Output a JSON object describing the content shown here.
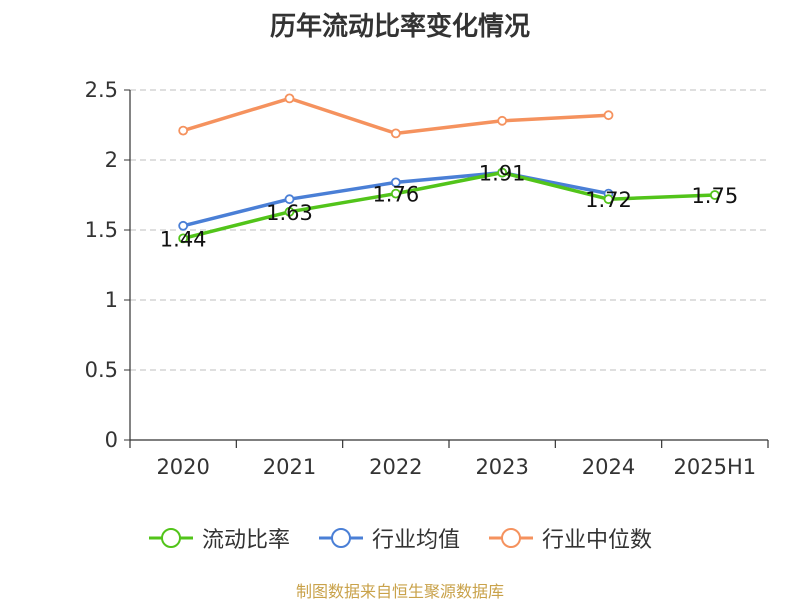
{
  "chart_data": {
    "type": "line",
    "title": "历年流动比率变化情况",
    "categories": [
      "2020",
      "2021",
      "2022",
      "2023",
      "2024",
      "2025H1"
    ],
    "ylim": [
      0,
      2.5
    ],
    "yticks": [
      "0",
      "0.5",
      "1",
      "1.5",
      "2",
      "2.5"
    ],
    "grid": true,
    "legend_position": "bottom",
    "series": [
      {
        "name": "流动比率",
        "color": "#52c41a",
        "values": [
          1.44,
          1.63,
          1.76,
          1.91,
          1.72,
          1.75
        ],
        "labels": [
          "1.44",
          "1.63",
          "1.76",
          "1.91",
          "1.72",
          "1.75"
        ]
      },
      {
        "name": "行业均值",
        "color": "#4a7fd6",
        "values": [
          1.53,
          1.72,
          1.84,
          1.91,
          1.76,
          null
        ]
      },
      {
        "name": "行业中位数",
        "color": "#f5925e",
        "values": [
          2.21,
          2.44,
          2.19,
          2.28,
          2.32,
          null
        ]
      }
    ],
    "source": "制图数据来自恒生聚源数据库"
  }
}
